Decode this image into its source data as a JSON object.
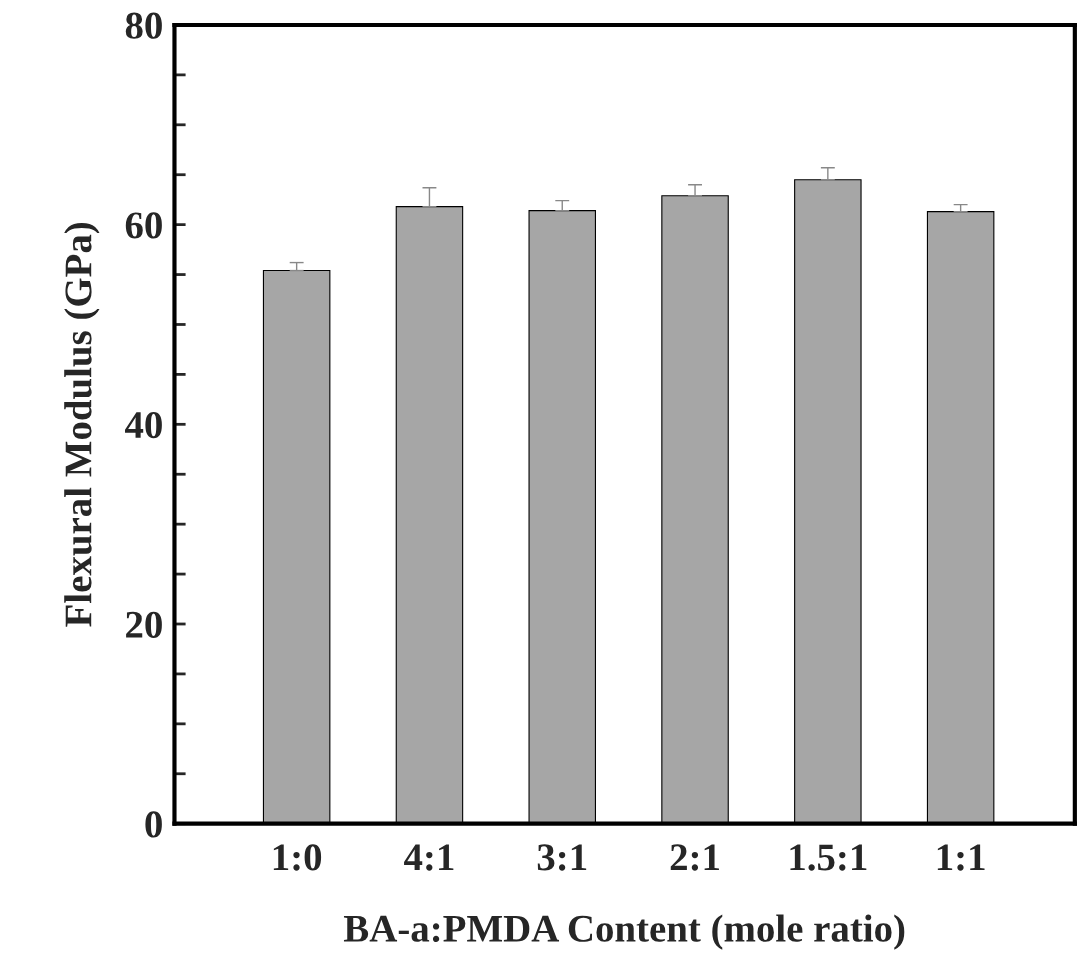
{
  "chart_data": {
    "type": "bar",
    "xlabel": "BA-a:PMDA Content (mole ratio)",
    "ylabel": "Flexural Modulus (GPa)",
    "categories": [
      "1:0",
      "4:1",
      "3:1",
      "2:1",
      "1.5:1",
      "1:1"
    ],
    "values": [
      55.4,
      61.8,
      61.4,
      62.9,
      64.5,
      61.3
    ],
    "errors": [
      [
        55.4,
        56.2
      ],
      [
        61.8,
        63.7
      ],
      [
        61.4,
        62.4
      ],
      [
        62.9,
        64.0
      ],
      [
        64.5,
        65.7
      ],
      [
        61.3,
        62.0
      ]
    ],
    "color": "#a6a6a6",
    "ylim": [
      0,
      80
    ],
    "yticks": [
      0,
      {
        "value": 5,
        "label": null
      },
      {
        "value": 10,
        "label": null
      },
      {
        "value": 15,
        "label": null
      },
      20,
      {
        "value": 25,
        "label": null
      },
      {
        "value": 30,
        "label": null
      },
      {
        "value": 35,
        "label": null
      },
      40,
      {
        "value": 45,
        "label": null
      },
      {
        "value": 50,
        "label": null
      },
      {
        "value": 55,
        "label": null
      },
      60,
      {
        "value": 65,
        "label": null
      },
      {
        "value": 70,
        "label": null
      },
      {
        "value": 75,
        "label": null
      },
      80
    ],
    "grid": false
  }
}
